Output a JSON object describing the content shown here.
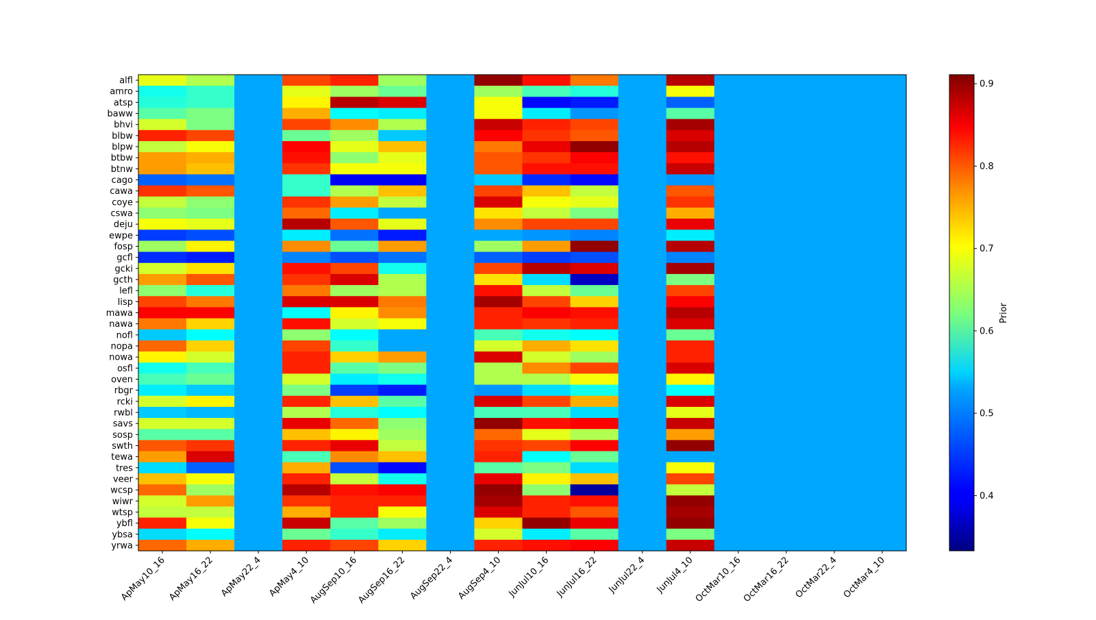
{
  "chart_data": {
    "type": "heatmap",
    "title": "",
    "xlabel": "",
    "ylabel": "",
    "colorbar": {
      "label": "Prior",
      "colormap": "jet",
      "vmin": 0.333,
      "vmax": 0.911,
      "ticks": [
        0.4,
        0.5,
        0.6,
        0.7,
        0.8,
        0.9
      ],
      "tick_labels": [
        "0.4",
        "0.5",
        "0.6",
        "0.7",
        "0.8",
        "0.9"
      ]
    },
    "columns": [
      "ApMay10_16",
      "ApMay16_22",
      "ApMay22_4",
      "ApMay4_10",
      "AugSep10_16",
      "AugSep16_22",
      "AugSep22_4",
      "AugSep4_10",
      "JunJul10_16",
      "JunJul16_22",
      "JunJul22_4",
      "JunJul4_10",
      "OctMar10_16",
      "OctMar16_22",
      "OctMar22_4",
      "OctMar4_10"
    ],
    "rows": [
      "alfl",
      "amro",
      "atsp",
      "baww",
      "bhvi",
      "blbw",
      "blpw",
      "btbw",
      "btnw",
      "cago",
      "cawa",
      "coye",
      "cswa",
      "deju",
      "ewpe",
      "fosp",
      "gcfl",
      "gcki",
      "gcth",
      "lefl",
      "lisp",
      "mawa",
      "nawa",
      "nofl",
      "nopa",
      "nowa",
      "osfl",
      "oven",
      "rbgr",
      "rcki",
      "rwbl",
      "savs",
      "sosp",
      "swth",
      "tewa",
      "tres",
      "veer",
      "wcsp",
      "wiwr",
      "wtsp",
      "ybfl",
      "ybsa",
      "yrwa"
    ],
    "values": [
      [
        0.68,
        0.65,
        0.5,
        0.8,
        0.82,
        0.64,
        0.5,
        0.9,
        0.83,
        0.77,
        0.5,
        0.88,
        0.5,
        0.5,
        0.5,
        0.5
      ],
      [
        0.56,
        0.58,
        0.5,
        0.68,
        0.64,
        0.61,
        0.5,
        0.64,
        0.59,
        0.57,
        0.5,
        0.69,
        0.5,
        0.5,
        0.5,
        0.5
      ],
      [
        0.57,
        0.58,
        0.5,
        0.7,
        0.88,
        0.86,
        0.5,
        0.69,
        0.41,
        0.42,
        0.5,
        0.46,
        0.5,
        0.5,
        0.5,
        0.5
      ],
      [
        0.6,
        0.62,
        0.5,
        0.74,
        0.55,
        0.54,
        0.5,
        0.69,
        0.54,
        0.49,
        0.5,
        0.6,
        0.5,
        0.5,
        0.5,
        0.5
      ],
      [
        0.67,
        0.62,
        0.5,
        0.8,
        0.76,
        0.65,
        0.5,
        0.87,
        0.82,
        0.8,
        0.5,
        0.89,
        0.5,
        0.5,
        0.5,
        0.5
      ],
      [
        0.82,
        0.8,
        0.5,
        0.61,
        0.64,
        0.52,
        0.5,
        0.84,
        0.81,
        0.79,
        0.5,
        0.86,
        0.5,
        0.5,
        0.5,
        0.5
      ],
      [
        0.66,
        0.69,
        0.5,
        0.84,
        0.68,
        0.73,
        0.5,
        0.77,
        0.85,
        0.9,
        0.5,
        0.88,
        0.5,
        0.5,
        0.5,
        0.5
      ],
      [
        0.75,
        0.74,
        0.5,
        0.83,
        0.63,
        0.68,
        0.5,
        0.79,
        0.81,
        0.84,
        0.5,
        0.83,
        0.5,
        0.5,
        0.5,
        0.5
      ],
      [
        0.75,
        0.73,
        0.5,
        0.81,
        0.69,
        0.69,
        0.5,
        0.79,
        0.83,
        0.83,
        0.5,
        0.87,
        0.5,
        0.5,
        0.5,
        0.5
      ],
      [
        0.46,
        0.47,
        0.5,
        0.58,
        0.4,
        0.4,
        0.5,
        0.52,
        0.43,
        0.41,
        0.5,
        0.49,
        0.5,
        0.5,
        0.5,
        0.5
      ],
      [
        0.81,
        0.79,
        0.5,
        0.58,
        0.65,
        0.73,
        0.5,
        0.8,
        0.73,
        0.66,
        0.5,
        0.79,
        0.5,
        0.5,
        0.5,
        0.5
      ],
      [
        0.66,
        0.63,
        0.5,
        0.81,
        0.75,
        0.66,
        0.5,
        0.86,
        0.69,
        0.68,
        0.5,
        0.81,
        0.5,
        0.5,
        0.5,
        0.5
      ],
      [
        0.63,
        0.62,
        0.5,
        0.78,
        0.54,
        0.5,
        0.5,
        0.71,
        0.66,
        0.62,
        0.5,
        0.74,
        0.5,
        0.5,
        0.5,
        0.5
      ],
      [
        0.69,
        0.68,
        0.5,
        0.88,
        0.79,
        0.68,
        0.5,
        0.76,
        0.8,
        0.8,
        0.5,
        0.85,
        0.5,
        0.5,
        0.5,
        0.5
      ],
      [
        0.44,
        0.45,
        0.5,
        0.54,
        0.47,
        0.42,
        0.5,
        0.5,
        0.49,
        0.48,
        0.5,
        0.54,
        0.5,
        0.5,
        0.5,
        0.5
      ],
      [
        0.64,
        0.7,
        0.5,
        0.76,
        0.61,
        0.75,
        0.5,
        0.64,
        0.75,
        0.9,
        0.5,
        0.88,
        0.5,
        0.5,
        0.5,
        0.5
      ],
      [
        0.43,
        0.42,
        0.5,
        0.48,
        0.45,
        0.47,
        0.5,
        0.46,
        0.44,
        0.45,
        0.5,
        0.48,
        0.5,
        0.5,
        0.5,
        0.5
      ],
      [
        0.67,
        0.71,
        0.5,
        0.83,
        0.8,
        0.56,
        0.5,
        0.8,
        0.88,
        0.86,
        0.5,
        0.89,
        0.5,
        0.5,
        0.5,
        0.5
      ],
      [
        0.75,
        0.79,
        0.5,
        0.81,
        0.86,
        0.65,
        0.5,
        0.71,
        0.53,
        0.37,
        0.5,
        0.62,
        0.5,
        0.5,
        0.5,
        0.5
      ],
      [
        0.63,
        0.57,
        0.5,
        0.77,
        0.64,
        0.65,
        0.5,
        0.83,
        0.66,
        0.61,
        0.5,
        0.8,
        0.5,
        0.5,
        0.5,
        0.5
      ],
      [
        0.8,
        0.77,
        0.5,
        0.86,
        0.86,
        0.77,
        0.5,
        0.89,
        0.8,
        0.72,
        0.5,
        0.84,
        0.5,
        0.5,
        0.5,
        0.5
      ],
      [
        0.84,
        0.84,
        0.5,
        0.55,
        0.7,
        0.76,
        0.5,
        0.82,
        0.84,
        0.83,
        0.5,
        0.88,
        0.5,
        0.5,
        0.5,
        0.5
      ],
      [
        0.77,
        0.72,
        0.5,
        0.83,
        0.67,
        0.69,
        0.5,
        0.82,
        0.81,
        0.82,
        0.5,
        0.86,
        0.5,
        0.5,
        0.5,
        0.5
      ],
      [
        0.52,
        0.55,
        0.5,
        0.63,
        0.55,
        0.5,
        0.5,
        0.59,
        0.56,
        0.55,
        0.5,
        0.61,
        0.5,
        0.5,
        0.5,
        0.5
      ],
      [
        0.78,
        0.72,
        0.5,
        0.8,
        0.58,
        0.5,
        0.5,
        0.67,
        0.74,
        0.71,
        0.5,
        0.82,
        0.5,
        0.5,
        0.5,
        0.5
      ],
      [
        0.7,
        0.67,
        0.5,
        0.82,
        0.72,
        0.75,
        0.5,
        0.86,
        0.67,
        0.64,
        0.5,
        0.82,
        0.5,
        0.5,
        0.5,
        0.5
      ],
      [
        0.56,
        0.59,
        0.5,
        0.82,
        0.6,
        0.62,
        0.5,
        0.65,
        0.76,
        0.8,
        0.5,
        0.86,
        0.5,
        0.5,
        0.5,
        0.5
      ],
      [
        0.59,
        0.61,
        0.5,
        0.67,
        0.54,
        0.56,
        0.5,
        0.65,
        0.65,
        0.69,
        0.5,
        0.7,
        0.5,
        0.5,
        0.5,
        0.5
      ],
      [
        0.54,
        0.52,
        0.5,
        0.62,
        0.44,
        0.42,
        0.5,
        0.49,
        0.53,
        0.56,
        0.5,
        0.55,
        0.5,
        0.5,
        0.5,
        0.5
      ],
      [
        0.67,
        0.7,
        0.5,
        0.82,
        0.73,
        0.6,
        0.5,
        0.86,
        0.8,
        0.74,
        0.5,
        0.86,
        0.5,
        0.5,
        0.5,
        0.5
      ],
      [
        0.52,
        0.51,
        0.5,
        0.65,
        0.57,
        0.55,
        0.5,
        0.59,
        0.59,
        0.53,
        0.5,
        0.68,
        0.5,
        0.5,
        0.5,
        0.5
      ],
      [
        0.67,
        0.67,
        0.5,
        0.85,
        0.78,
        0.63,
        0.5,
        0.9,
        0.83,
        0.84,
        0.5,
        0.87,
        0.5,
        0.5,
        0.5,
        0.5
      ],
      [
        0.6,
        0.6,
        0.5,
        0.73,
        0.7,
        0.64,
        0.5,
        0.78,
        0.68,
        0.65,
        0.5,
        0.75,
        0.5,
        0.5,
        0.5,
        0.5
      ],
      [
        0.79,
        0.81,
        0.5,
        0.82,
        0.85,
        0.66,
        0.5,
        0.81,
        0.8,
        0.84,
        0.5,
        0.9,
        0.5,
        0.5,
        0.5,
        0.5
      ],
      [
        0.75,
        0.86,
        0.5,
        0.59,
        0.76,
        0.73,
        0.5,
        0.82,
        0.55,
        0.61,
        0.5,
        0.5,
        0.5,
        0.5,
        0.5,
        0.5
      ],
      [
        0.53,
        0.46,
        0.5,
        0.74,
        0.45,
        0.41,
        0.5,
        0.6,
        0.62,
        0.53,
        0.5,
        0.69,
        0.5,
        0.5,
        0.5,
        0.5
      ],
      [
        0.73,
        0.69,
        0.5,
        0.82,
        0.66,
        0.56,
        0.5,
        0.85,
        0.7,
        0.73,
        0.5,
        0.8,
        0.5,
        0.5,
        0.5,
        0.5
      ],
      [
        0.78,
        0.64,
        0.5,
        0.88,
        0.83,
        0.84,
        0.5,
        0.9,
        0.63,
        0.35,
        0.5,
        0.66,
        0.5,
        0.5,
        0.5,
        0.5
      ],
      [
        0.67,
        0.75,
        0.5,
        0.81,
        0.82,
        0.82,
        0.5,
        0.89,
        0.82,
        0.83,
        0.5,
        0.9,
        0.5,
        0.5,
        0.5,
        0.5
      ],
      [
        0.66,
        0.66,
        0.5,
        0.74,
        0.82,
        0.69,
        0.5,
        0.86,
        0.82,
        0.79,
        0.5,
        0.89,
        0.5,
        0.5,
        0.5,
        0.5
      ],
      [
        0.82,
        0.69,
        0.5,
        0.87,
        0.6,
        0.64,
        0.5,
        0.72,
        0.9,
        0.85,
        0.5,
        0.9,
        0.5,
        0.5,
        0.5,
        0.5
      ],
      [
        0.53,
        0.55,
        0.5,
        0.61,
        0.58,
        0.54,
        0.5,
        0.67,
        0.54,
        0.6,
        0.5,
        0.62,
        0.5,
        0.5,
        0.5,
        0.5
      ],
      [
        0.78,
        0.74,
        0.5,
        0.82,
        0.8,
        0.72,
        0.5,
        0.82,
        0.83,
        0.84,
        0.5,
        0.87,
        0.5,
        0.5,
        0.5,
        0.5
      ]
    ]
  }
}
